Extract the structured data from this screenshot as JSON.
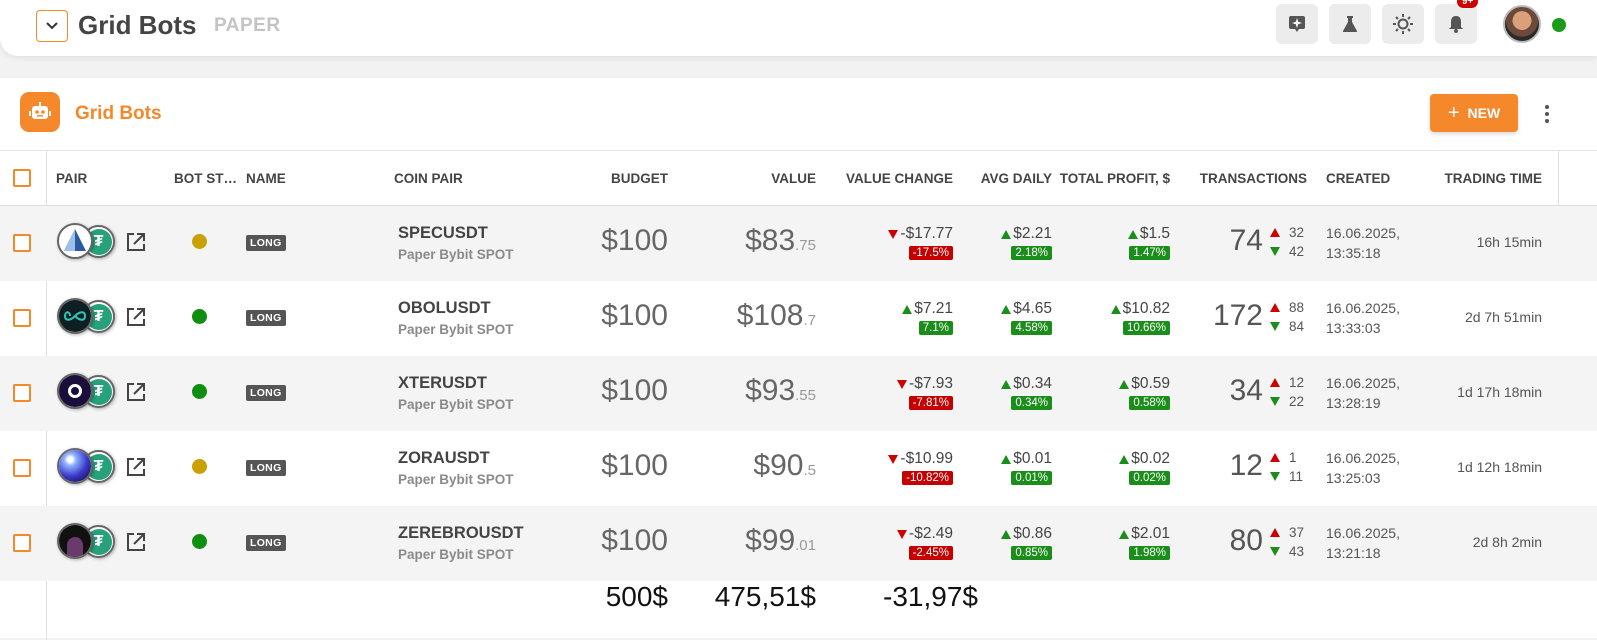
{
  "header": {
    "title": "Grid Bots",
    "mode": "PAPER",
    "notifications_badge": "9+"
  },
  "card": {
    "title": "Grid Bots",
    "new_button_label": "NEW"
  },
  "columns": [
    "PAIR",
    "BOT ST…",
    "NAME",
    "COIN PAIR",
    "BUDGET",
    "VALUE",
    "VALUE CHANGE",
    "AVG DAILY",
    "TOTAL PROFIT, $",
    "TRANSACTIONS",
    "CREATED",
    "TRADING TIME"
  ],
  "rows": [
    {
      "status": "yellow",
      "name": "LONG",
      "pair": "SPECUSDT",
      "exchange": "Paper Bybit SPOT",
      "budget": "$100",
      "value_int": "$83",
      "value_dec": ".75",
      "value_change": "-$17.77",
      "value_change_pct": "-17.5%",
      "value_change_dir": "down",
      "avg_daily": "$2.21",
      "avg_daily_pct": "2.18%",
      "total_profit": "$1.5",
      "total_profit_pct": "1.47%",
      "tx_total": "74",
      "tx_up": "32",
      "tx_down": "42",
      "created_date": "16.06.2025,",
      "created_time": "13:35:18",
      "trading_time": "16h 15min"
    },
    {
      "status": "green",
      "name": "LONG",
      "pair": "OBOLUSDT",
      "exchange": "Paper Bybit SPOT",
      "budget": "$100",
      "value_int": "$108",
      "value_dec": ".7",
      "value_change": "$7.21",
      "value_change_pct": "7.1%",
      "value_change_dir": "up",
      "avg_daily": "$4.65",
      "avg_daily_pct": "4.58%",
      "total_profit": "$10.82",
      "total_profit_pct": "10.66%",
      "tx_total": "172",
      "tx_up": "88",
      "tx_down": "84",
      "created_date": "16.06.2025,",
      "created_time": "13:33:03",
      "trading_time": "2d 7h 51min"
    },
    {
      "status": "green",
      "name": "LONG",
      "pair": "XTERUSDT",
      "exchange": "Paper Bybit SPOT",
      "budget": "$100",
      "value_int": "$93",
      "value_dec": ".55",
      "value_change": "-$7.93",
      "value_change_pct": "-7.81%",
      "value_change_dir": "down",
      "avg_daily": "$0.34",
      "avg_daily_pct": "0.34%",
      "total_profit": "$0.59",
      "total_profit_pct": "0.58%",
      "tx_total": "34",
      "tx_up": "12",
      "tx_down": "22",
      "created_date": "16.06.2025,",
      "created_time": "13:28:19",
      "trading_time": "1d 17h 18min"
    },
    {
      "status": "yellow",
      "name": "LONG",
      "pair": "ZORAUSDT",
      "exchange": "Paper Bybit SPOT",
      "budget": "$100",
      "value_int": "$90",
      "value_dec": ".5",
      "value_change": "-$10.99",
      "value_change_pct": "-10.82%",
      "value_change_dir": "down",
      "avg_daily": "$0.01",
      "avg_daily_pct": "0.01%",
      "total_profit": "$0.02",
      "total_profit_pct": "0.02%",
      "tx_total": "12",
      "tx_up": "1",
      "tx_down": "11",
      "created_date": "16.06.2025,",
      "created_time": "13:25:03",
      "trading_time": "1d 12h 18min"
    },
    {
      "status": "green",
      "name": "LONG",
      "pair": "ZEREBROUSDT",
      "exchange": "Paper Bybit SPOT",
      "budget": "$100",
      "value_int": "$99",
      "value_dec": ".01",
      "value_change": "-$2.49",
      "value_change_pct": "-2.45%",
      "value_change_dir": "down",
      "avg_daily": "$0.86",
      "avg_daily_pct": "0.85%",
      "total_profit": "$2.01",
      "total_profit_pct": "1.98%",
      "tx_total": "80",
      "tx_up": "37",
      "tx_down": "43",
      "created_date": "16.06.2025,",
      "created_time": "13:21:18",
      "trading_time": "2d 8h 2min"
    }
  ],
  "totals": {
    "budget": "500$",
    "value": "475,51$",
    "value_change": "-31,97$"
  },
  "colors": {
    "accent": "#f4882b",
    "status_green": "#0f8f0f",
    "status_yellow": "#c9a100",
    "positive": "#1a8d1a",
    "negative": "#c40000"
  },
  "icons": {
    "menu_toggle": "chevron-down-icon",
    "top_actions": [
      "ai-sparkle-icon",
      "flask-icon",
      "sun-icon",
      "bell-icon"
    ],
    "card": "robot-icon",
    "row_link": "external-link-icon"
  }
}
